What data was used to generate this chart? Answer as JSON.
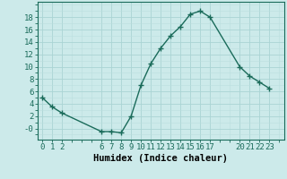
{
  "x": [
    0,
    1,
    2,
    6,
    7,
    8,
    9,
    10,
    11,
    12,
    13,
    14,
    15,
    16,
    17,
    20,
    21,
    22,
    23
  ],
  "y": [
    5,
    3.5,
    2.5,
    -0.5,
    -0.5,
    -0.7,
    2,
    7,
    10.5,
    13,
    15,
    16.5,
    18.5,
    19,
    18,
    10,
    8.5,
    7.5,
    6.5
  ],
  "line_color": "#1a6b5a",
  "marker_color": "#1a6b5a",
  "bg_color": "#cceaea",
  "grid_major_color": "#aad4d4",
  "grid_minor_color": "#bbdede",
  "xlabel": "Humidex (Indice chaleur)",
  "xticks": [
    0,
    1,
    2,
    6,
    7,
    8,
    9,
    10,
    11,
    12,
    13,
    14,
    15,
    16,
    17,
    20,
    21,
    22,
    23
  ],
  "yticks": [
    0,
    2,
    4,
    6,
    8,
    10,
    12,
    14,
    16,
    18
  ],
  "ytick_labels": [
    "-0",
    "2",
    "4",
    "6",
    "8",
    "10",
    "12",
    "14",
    "16",
    "18"
  ],
  "ylim": [
    -1.8,
    20.5
  ],
  "xlim": [
    -0.5,
    24.5
  ],
  "axis_fontsize": 6.5,
  "label_fontsize": 7.5
}
